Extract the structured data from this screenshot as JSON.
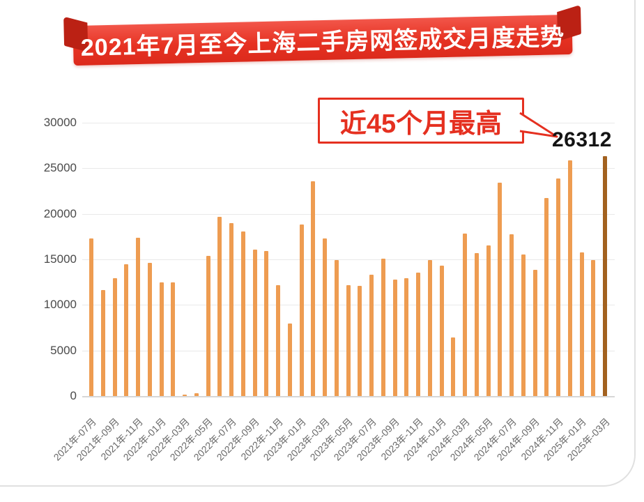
{
  "title": "2021年7月至今上海二手房网签成交月度走势",
  "annotation": {
    "text": "近45个月最高",
    "value_label": "26312"
  },
  "colors": {
    "banner_red": "#E6352A",
    "annotation_red": "#E53020",
    "bar_orange": "#EE9C51",
    "bar_highlight_brown": "#A2611F",
    "grid_gray": "#E9E9E9",
    "axis_text_gray": "#4A4A4A"
  },
  "chart_data": {
    "type": "bar",
    "title": "2021年7月至今上海二手房网签成交月度走势",
    "xlabel": "",
    "ylabel": "",
    "ylim": [
      0,
      30000
    ],
    "yticks": [
      0,
      5000,
      10000,
      15000,
      20000,
      25000,
      30000
    ],
    "grid": true,
    "legend": "none",
    "highlight_index": 44,
    "highlight_value": 26312,
    "months": [
      "2021年-07月",
      "2021年-08月",
      "2021年-09月",
      "2021年-10月",
      "2021年-11月",
      "2021年-12月",
      "2022年-01月",
      "2022年-02月",
      "2022年-03月",
      "2022年-04月",
      "2022年-05月",
      "2022年-06月",
      "2022年-07月",
      "2022年-08月",
      "2022年-09月",
      "2022年-10月",
      "2022年-11月",
      "2022年-12月",
      "2023年-01月",
      "2023年-02月",
      "2023年-03月",
      "2023年-04月",
      "2023年-05月",
      "2023年-06月",
      "2023年-07月",
      "2023年-08月",
      "2023年-09月",
      "2023年-10月",
      "2023年-11月",
      "2023年-12月",
      "2024年-01月",
      "2024年-02月",
      "2024年-03月",
      "2024年-04月",
      "2024年-05月",
      "2024年-06月",
      "2024年-07月",
      "2024年-08月",
      "2024年-09月",
      "2024年-10月",
      "2024年-11月",
      "2024年-12月",
      "2025年-01月",
      "2025年-02月",
      "2025年-03月"
    ],
    "values": [
      17300,
      11650,
      12900,
      14500,
      17400,
      14650,
      12450,
      12500,
      150,
      280,
      15400,
      19700,
      19000,
      18050,
      16050,
      15900,
      12150,
      7950,
      18800,
      23600,
      17300,
      14900,
      12200,
      12100,
      13350,
      15100,
      12750,
      12900,
      13550,
      14900,
      14300,
      6450,
      17800,
      15700,
      16550,
      23450,
      17750,
      15550,
      13850,
      21750,
      23900,
      25900,
      15800,
      14950,
      26312
    ],
    "tick_labels": [
      "2021年-07月",
      "2021年-09月",
      "2021年-11月",
      "2022年-01月",
      "2022年-03月",
      "2022年-05月",
      "2022年-07月",
      "2022年-09月",
      "2022年-11月",
      "2023年-01月",
      "2023年-03月",
      "2023年-05月",
      "2023年-07月",
      "2023年-09月",
      "2023年-11月",
      "2024年-01月",
      "2024年-03月",
      "2024年-05月",
      "2024年-07月",
      "2024年-09月",
      "2024年-11月",
      "2025年-01月",
      "2025年-03月"
    ]
  }
}
